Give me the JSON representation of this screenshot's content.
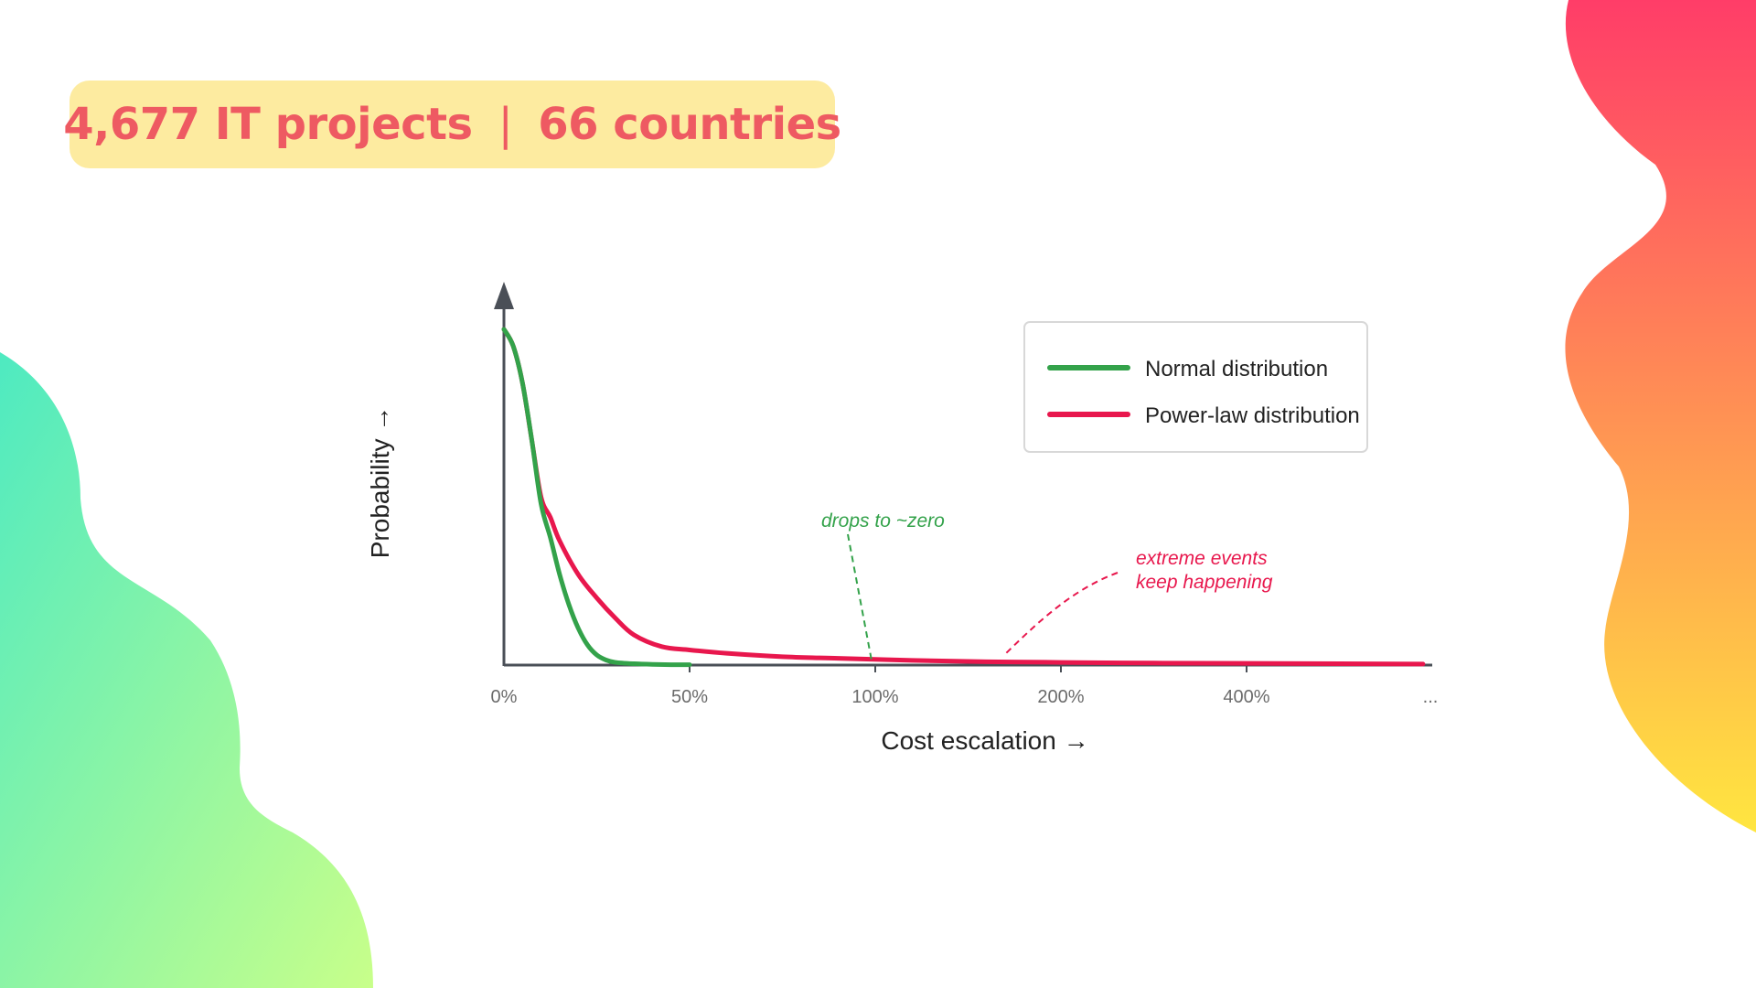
{
  "banner": {
    "projects": "4,677 IT projects",
    "separator": "|",
    "countries": "66 countries"
  },
  "colors": {
    "banner_bg": "#fdeba0",
    "banner_text": "#ee5a62",
    "normal": "#33a24a",
    "power_law": "#e8174d",
    "axis": "#4a4f57",
    "blob_left": [
      "#4eeac1",
      "#c8ff8a"
    ],
    "blob_right": [
      "#ff3d68",
      "#ffe640"
    ]
  },
  "chart_data": {
    "type": "line",
    "xlabel": "Cost escalation →",
    "ylabel": "Probability →",
    "x_ticks": [
      "0%",
      "50%",
      "100%",
      "200%",
      "400%",
      "..."
    ],
    "y_tick_labels": false,
    "ylim": [
      0,
      1
    ],
    "grid": false,
    "legend_position": "top-right",
    "legend": [
      "Normal distribution",
      "Power-law distribution"
    ],
    "series": [
      {
        "name": "Normal distribution",
        "color": "#33a24a",
        "points": [
          [
            0,
            1.0
          ],
          [
            0.05,
            0.95
          ],
          [
            0.1,
            0.84
          ],
          [
            0.15,
            0.67
          ],
          [
            0.2,
            0.48
          ],
          [
            0.25,
            0.38
          ],
          [
            0.3,
            0.27
          ],
          [
            0.35,
            0.18
          ],
          [
            0.4,
            0.11
          ],
          [
            0.45,
            0.06
          ],
          [
            0.5,
            0.03
          ],
          [
            0.55,
            0.015
          ],
          [
            0.6,
            0.008
          ],
          [
            0.7,
            0.004
          ],
          [
            0.8,
            0.002
          ],
          [
            0.9,
            0.001
          ],
          [
            1.0,
            0.001
          ]
        ]
      },
      {
        "name": "Power-law distribution",
        "color": "#e8174d",
        "points": [
          [
            0,
            1.0
          ],
          [
            0.05,
            0.95
          ],
          [
            0.1,
            0.84
          ],
          [
            0.15,
            0.67
          ],
          [
            0.2,
            0.5
          ],
          [
            0.25,
            0.44
          ],
          [
            0.3,
            0.37
          ],
          [
            0.4,
            0.27
          ],
          [
            0.5,
            0.2
          ],
          [
            0.6,
            0.14
          ],
          [
            0.7,
            0.09
          ],
          [
            0.85,
            0.055
          ],
          [
            1.0,
            0.045
          ],
          [
            1.2,
            0.035
          ],
          [
            1.5,
            0.025
          ],
          [
            1.8,
            0.02
          ],
          [
            2.2,
            0.014
          ],
          [
            2.6,
            0.01
          ],
          [
            3.0,
            0.008
          ],
          [
            3.5,
            0.006
          ],
          [
            4.0,
            0.005
          ],
          [
            4.5,
            0.004
          ],
          [
            4.95,
            0.003
          ]
        ]
      }
    ],
    "annotations": [
      {
        "text": "drops to ~zero",
        "series": "Normal distribution",
        "x": 1.0,
        "y": 0.0
      },
      {
        "text": "extreme events\nkeep happening",
        "series": "Power-law distribution",
        "x": 1.65,
        "y": 0.03
      }
    ]
  }
}
